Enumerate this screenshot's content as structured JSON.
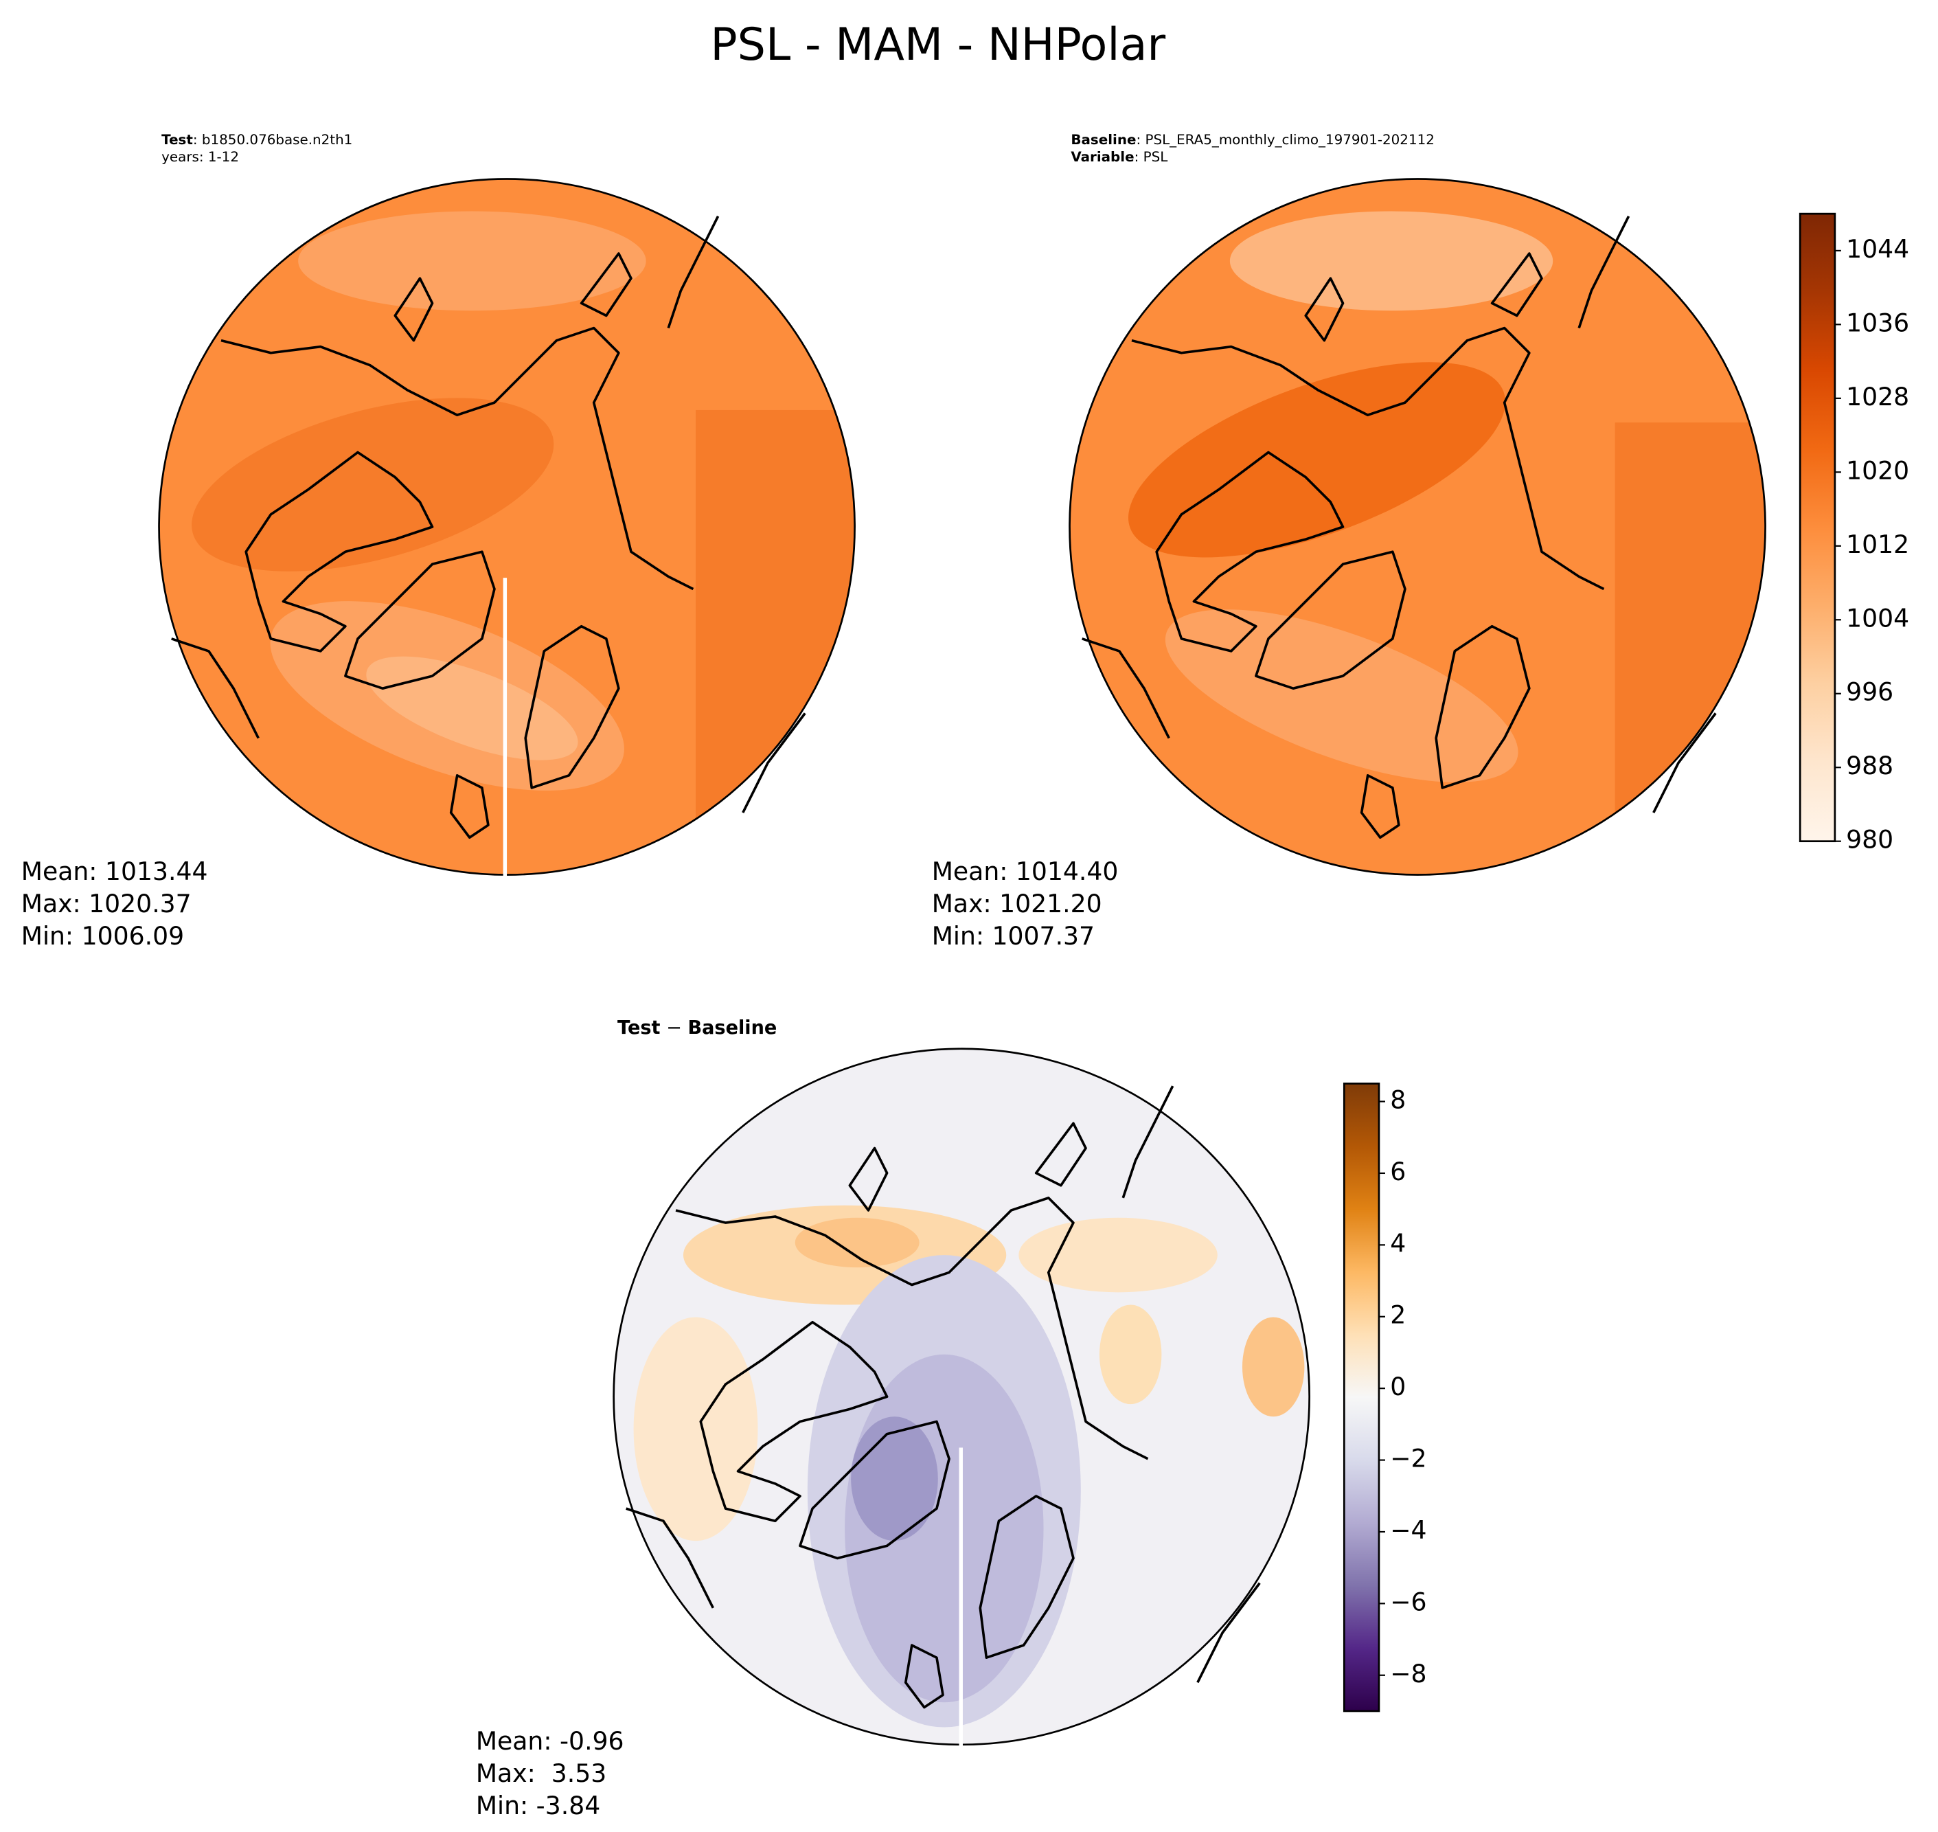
{
  "title": "PSL - MAM - NHPolar",
  "panels": [
    {
      "label_parts": [
        "Test",
        ": b1850.076base.n2th1"
      ],
      "label_line2": "years: 1-12",
      "stats": [
        "Mean: 1013.44",
        "Max: 1020.37",
        "Min: 1006.09"
      ]
    },
    {
      "label_parts": [
        "Baseline",
        ": PSL_ERA5_monthly_climo_197901-202112"
      ],
      "label_line2_parts": [
        "Variable",
        ": PSL"
      ],
      "stats": [
        "Mean: 1014.40",
        "Max: 1021.20",
        "Min: 1007.37"
      ]
    },
    {
      "label_parts": [
        "Test",
        " − ",
        "Baseline"
      ],
      "stats": [
        "Mean: -0.96",
        "Max:  3.53",
        "Min: -3.84"
      ]
    }
  ],
  "colorbars": [
    {
      "ylim": [
        980,
        1048
      ],
      "yticks": [
        980,
        988,
        996,
        1004,
        1012,
        1020,
        1028,
        1036,
        1044
      ],
      "colors": [
        "#fff5eb",
        "#fee6ce",
        "#fdd0a2",
        "#fdae6b",
        "#fd8d3c",
        "#f16913",
        "#d94801",
        "#a63603",
        "#7f2704"
      ]
    },
    {
      "ylim": [
        -9,
        8.5
      ],
      "yticks": [
        {
          "value": -8,
          "label": "−8"
        },
        {
          "value": -6,
          "label": "−6"
        },
        {
          "value": -4,
          "label": "−4"
        },
        {
          "value": -2,
          "label": "−2"
        },
        0,
        2,
        4,
        6,
        8
      ],
      "colors": [
        "#2d004b",
        "#542788",
        "#8073ac",
        "#b2abd2",
        "#d8daeb",
        "#f7f7f7",
        "#fee0b6",
        "#fdb863",
        "#e08214",
        "#b35806",
        "#7f3b08"
      ]
    }
  ]
}
